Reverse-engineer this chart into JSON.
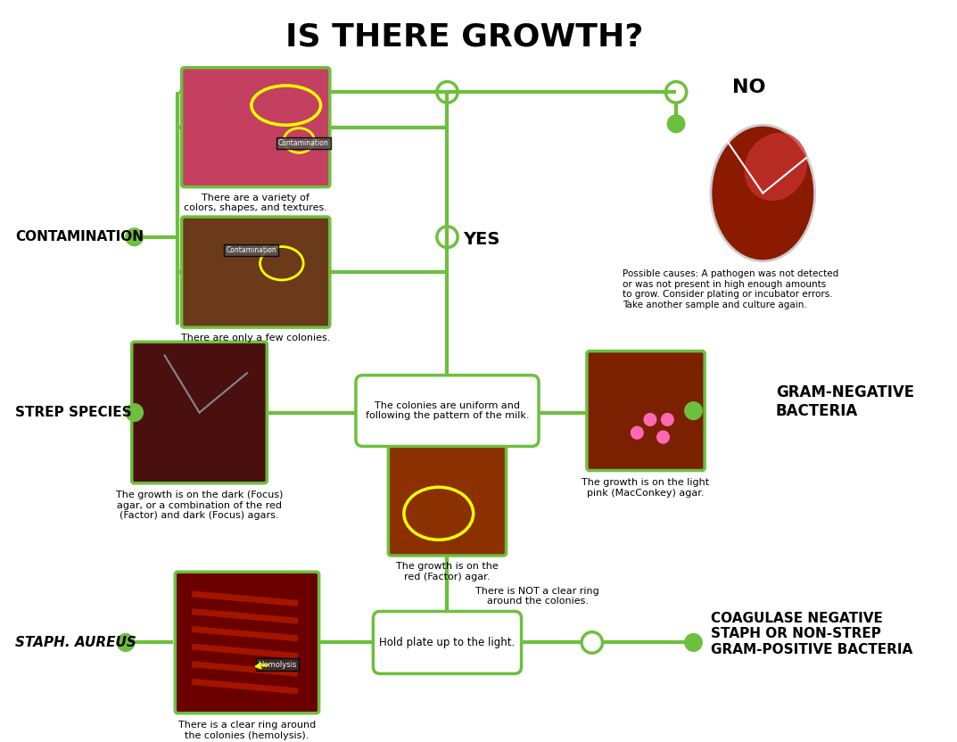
{
  "title": "IS THERE GROWTH?",
  "title_fontsize": 26,
  "title_weight": "bold",
  "bg_color": "#ffffff",
  "green": "#6dbf3e",
  "line_width": 3,
  "texts": {
    "contamination": "CONTAMINATION",
    "strep_species": "STREP SPECIES",
    "gram_negative": "GRAM-NEGATIVE\nBACTERIA",
    "staph_aureus": "STAPH. AUREUS",
    "coag_neg": "COAGULASE NEGATIVE\nSTAPH OR NON-STREP\nGRAM-POSITIVE BACTERIA",
    "no": "NO",
    "yes": "YES",
    "contamination_desc1": "There are a variety of\ncolors, shapes, and textures.",
    "contamination_desc2": "There are only a few colonies.",
    "strep_desc": "The growth is on the dark (Focus)\nagar, or a combination of the red\n(Factor) and dark (Focus) agars.",
    "gram_neg_desc": "The growth is on the light\npink (MacConkey) agar.",
    "factor_box_label": "The colonies are uniform and\nfollowing the pattern of the milk.",
    "factor_desc": "The growth is on the\nred (Factor) agar.",
    "staph_desc": "There is a clear ring around\nthe colonies (hemolysis).",
    "coag_neg_desc": "There is NOT a clear ring\naround the colonies.",
    "hold_plate_label": "Hold plate up to the light.",
    "no_desc": "Possible causes: A pathogen was not detected\nor was not present in high enough amounts\nto grow. Consider plating or incubator errors.\nTake another sample and culture again."
  }
}
